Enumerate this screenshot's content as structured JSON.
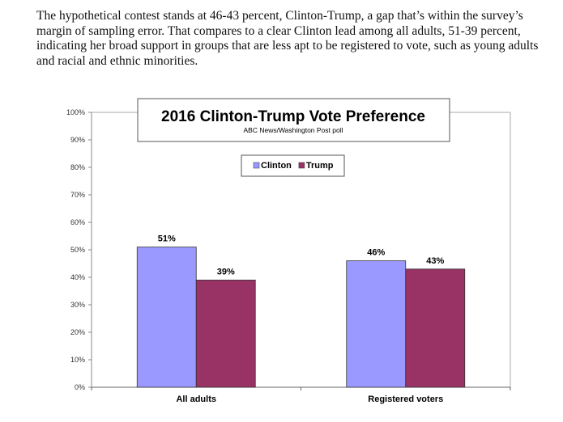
{
  "paragraph": "The hypothetical contest stands at 46-43 percent, Clinton-Trump, a gap that’s within the survey’s margin of sampling error. That compares to a clear Clinton lead among all adults, 51-39 percent, indicating her broad support in groups that are less apt to be registered to vote, such as young adults and racial and ethnic minorities.",
  "chart_data": {
    "type": "bar",
    "title": "2016 Clinton-Trump Vote Preference",
    "subtitle": "ABC News/Washington  Post poll",
    "categories": [
      "All adults",
      "Registered voters"
    ],
    "series": [
      {
        "name": "Clinton",
        "values": [
          51,
          46
        ],
        "color": "#9999ff"
      },
      {
        "name": "Trump",
        "values": [
          39,
          43
        ],
        "color": "#993366"
      }
    ],
    "data_labels": true,
    "ylim": [
      0,
      100
    ],
    "yticks": [
      "0%",
      "10%",
      "20%",
      "30%",
      "40%",
      "50%",
      "60%",
      "70%",
      "80%",
      "90%",
      "100%"
    ],
    "grid": false,
    "legend": "top-center"
  }
}
